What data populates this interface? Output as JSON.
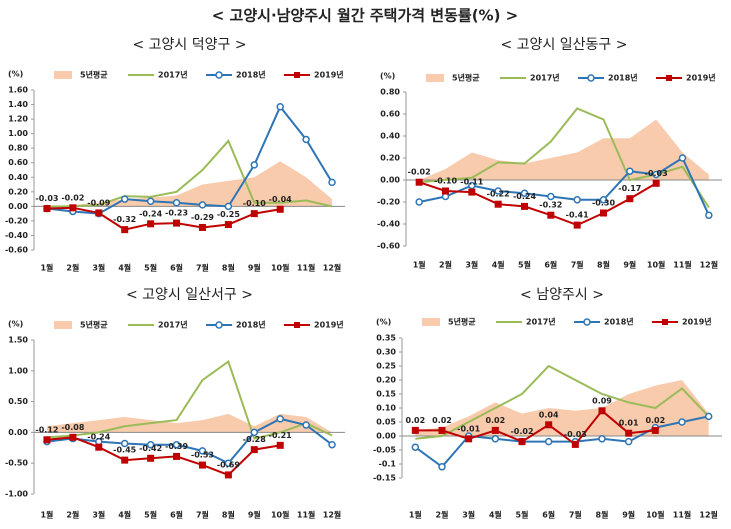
{
  "title": "< 고양시·남양주시 월간 주택가격 변동률(%) >",
  "chart_data": [
    {
      "type": "line",
      "title": "< 고양시 덕양구 >",
      "unit_label": "(%)",
      "categories": [
        "1월",
        "2월",
        "3월",
        "4월",
        "5월",
        "6월",
        "7월",
        "8월",
        "9월",
        "10월",
        "11월",
        "12월"
      ],
      "ylim": [
        -0.6,
        1.6
      ],
      "yticks": [
        {
          "value": -0.6,
          "label": "-0.60"
        },
        {
          "value": -0.4,
          "label": "-0.40"
        },
        {
          "value": -0.2,
          "label": "-0.20"
        },
        {
          "value": 0,
          "label": "0.00"
        },
        {
          "value": 0.2,
          "label": "0.20"
        },
        {
          "value": 0.4,
          "label": "0.40"
        },
        {
          "value": 0.6,
          "label": "0.60"
        },
        {
          "value": 0.8,
          "label": "0.80"
        },
        {
          "value": 1.0,
          "label": "1.00"
        },
        {
          "value": 1.2,
          "label": "1.20"
        },
        {
          "value": 1.4,
          "label": "1.40"
        },
        {
          "value": 1.6,
          "label": "1.60"
        }
      ],
      "series": [
        {
          "name": "5년평균",
          "style": "area",
          "color": "#f8cbad",
          "values": [
            0.0,
            0.02,
            0.05,
            0.1,
            0.12,
            0.15,
            0.3,
            0.35,
            0.4,
            0.62,
            0.4,
            0.1
          ]
        },
        {
          "name": "2017년",
          "style": "line",
          "color": "#9bbb59",
          "values": [
            0.0,
            0.0,
            0.02,
            0.14,
            0.13,
            0.2,
            0.5,
            0.9,
            0.05,
            0.05,
            0.08,
            0.0
          ]
        },
        {
          "name": "2018년",
          "style": "line",
          "marker": "circle",
          "color": "#2e75b6",
          "values": [
            -0.03,
            -0.07,
            -0.1,
            0.1,
            0.07,
            0.05,
            0.02,
            0.0,
            0.57,
            1.37,
            0.92,
            0.33
          ]
        },
        {
          "name": "2019년",
          "style": "line",
          "marker": "square",
          "color": "#c00000",
          "values": [
            -0.03,
            -0.02,
            -0.09,
            -0.32,
            -0.24,
            -0.23,
            -0.29,
            -0.25,
            -0.1,
            -0.04,
            null,
            null
          ],
          "value_labels": [
            "-0.03",
            "-0.02",
            "-0.09",
            "-0.32",
            "-0.24",
            "-0.23",
            "-0.29",
            "-0.25",
            "-0.10",
            "-0.04",
            null,
            null
          ]
        }
      ]
    },
    {
      "type": "line",
      "title": "< 고양시 일산동구 >",
      "unit_label": "(%)",
      "categories": [
        "1월",
        "2월",
        "3월",
        "4월",
        "5월",
        "6월",
        "7월",
        "8월",
        "9월",
        "10월",
        "11월",
        "12월"
      ],
      "ylim": [
        -0.6,
        0.8
      ],
      "yticks": [
        {
          "value": -0.6,
          "label": "-0.60"
        },
        {
          "value": -0.4,
          "label": "-0.40"
        },
        {
          "value": -0.2,
          "label": "-0.20"
        },
        {
          "value": 0,
          "label": "0.00"
        },
        {
          "value": 0.2,
          "label": "0.20"
        },
        {
          "value": 0.4,
          "label": "0.40"
        },
        {
          "value": 0.6,
          "label": "0.60"
        },
        {
          "value": 0.8,
          "label": "0.80"
        }
      ],
      "series": [
        {
          "name": "5년평균",
          "style": "area",
          "color": "#f8cbad",
          "values": [
            0.0,
            0.1,
            0.25,
            0.18,
            0.15,
            0.2,
            0.25,
            0.38,
            0.38,
            0.55,
            0.25,
            0.05
          ]
        },
        {
          "name": "2017년",
          "style": "line",
          "color": "#9bbb59",
          "values": [
            -0.02,
            0.0,
            0.02,
            0.16,
            0.15,
            0.35,
            0.65,
            0.55,
            0.0,
            0.05,
            0.12,
            -0.25
          ]
        },
        {
          "name": "2018년",
          "style": "line",
          "marker": "circle",
          "color": "#2e75b6",
          "values": [
            -0.2,
            -0.15,
            -0.05,
            -0.1,
            -0.12,
            -0.15,
            -0.18,
            -0.18,
            0.08,
            0.05,
            0.2,
            -0.32
          ]
        },
        {
          "name": "2019년",
          "style": "line",
          "marker": "square",
          "color": "#c00000",
          "values": [
            -0.02,
            -0.1,
            -0.11,
            -0.22,
            -0.24,
            -0.32,
            -0.41,
            -0.3,
            -0.17,
            -0.03,
            null,
            null
          ],
          "value_labels": [
            "-0.02",
            "-0.10",
            "-0.11",
            "-0.22",
            "-0.24",
            "-0.32",
            "-0.41",
            "-0.30",
            "-0.17",
            "-0.03",
            null,
            null
          ]
        }
      ]
    },
    {
      "type": "line",
      "title": "< 고양시 일산서구 >",
      "unit_label": "(%)",
      "categories": [
        "1월",
        "2월",
        "3월",
        "4월",
        "5월",
        "6월",
        "7월",
        "8월",
        "9월",
        "10월",
        "11월",
        "12월"
      ],
      "ylim": [
        -1.0,
        1.5
      ],
      "yticks": [
        {
          "value": -1.0,
          "label": "-1.00"
        },
        {
          "value": -0.5,
          "label": "-0.50"
        },
        {
          "value": 0,
          "label": "0.00"
        },
        {
          "value": 0.5,
          "label": "0.50"
        },
        {
          "value": 1.0,
          "label": "1.00"
        },
        {
          "value": 1.5,
          "label": "1.50"
        }
      ],
      "series": [
        {
          "name": "5년평균",
          "style": "area",
          "color": "#f8cbad",
          "values": [
            0.1,
            0.15,
            0.2,
            0.25,
            0.2,
            0.15,
            0.2,
            0.3,
            0.1,
            0.3,
            0.25,
            0.0
          ]
        },
        {
          "name": "2017년",
          "style": "line",
          "color": "#9bbb59",
          "values": [
            -0.08,
            -0.05,
            0.0,
            0.1,
            0.15,
            0.2,
            0.85,
            1.15,
            -0.1,
            0.0,
            0.15,
            -0.05
          ]
        },
        {
          "name": "2018년",
          "style": "line",
          "marker": "circle",
          "color": "#2e75b6",
          "values": [
            -0.15,
            -0.1,
            -0.15,
            -0.18,
            -0.2,
            -0.2,
            -0.3,
            -0.5,
            0.0,
            0.22,
            0.12,
            -0.2
          ]
        },
        {
          "name": "2019년",
          "style": "line",
          "marker": "square",
          "color": "#c00000",
          "values": [
            -0.12,
            -0.08,
            -0.24,
            -0.45,
            -0.42,
            -0.39,
            -0.53,
            -0.69,
            -0.28,
            -0.21,
            null,
            null
          ],
          "value_labels": [
            "-0.12",
            "-0.08",
            "-0.24",
            "-0.45",
            "-0.42",
            "-0.39",
            "-0.53",
            "-0.69",
            "-0.28",
            "-0.21",
            null,
            null
          ]
        }
      ]
    },
    {
      "type": "line",
      "title": "< 남양주시 >",
      "unit_label": "(%)",
      "categories": [
        "1월",
        "2월",
        "3월",
        "4월",
        "5월",
        "6월",
        "7월",
        "8월",
        "9월",
        "10월",
        "11월",
        "12월"
      ],
      "ylim": [
        -0.15,
        0.35
      ],
      "yticks": [
        -0.15,
        -0.1,
        -0.05,
        {
          "value": 0,
          "label": "0.00"
        },
        0.05,
        {
          "value": 0.1,
          "label": "0.10"
        },
        0.15,
        {
          "value": 0.2,
          "label": "0.20"
        },
        0.25,
        {
          "value": 0.3,
          "label": "0.30"
        },
        0.35
      ],
      "series": [
        {
          "name": "5년평균",
          "style": "area",
          "color": "#f8cbad",
          "values": [
            0.02,
            0.03,
            0.07,
            0.12,
            0.08,
            0.1,
            0.09,
            0.1,
            0.15,
            0.18,
            0.2,
            0.08
          ]
        },
        {
          "name": "2017년",
          "style": "line",
          "color": "#9bbb59",
          "values": [
            -0.01,
            0.0,
            0.05,
            0.1,
            0.15,
            0.25,
            0.2,
            0.15,
            0.12,
            0.1,
            0.17,
            0.07
          ]
        },
        {
          "name": "2018년",
          "style": "line",
          "marker": "circle",
          "color": "#2e75b6",
          "values": [
            -0.04,
            -0.11,
            0.0,
            -0.01,
            -0.02,
            -0.02,
            -0.02,
            -0.01,
            -0.02,
            0.03,
            0.05,
            0.07
          ]
        },
        {
          "name": "2019년",
          "style": "line",
          "marker": "square",
          "color": "#c00000",
          "values": [
            0.02,
            0.02,
            -0.01,
            0.02,
            -0.02,
            0.04,
            -0.03,
            0.09,
            0.01,
            0.02,
            null,
            null
          ]
        }
      ]
    }
  ]
}
